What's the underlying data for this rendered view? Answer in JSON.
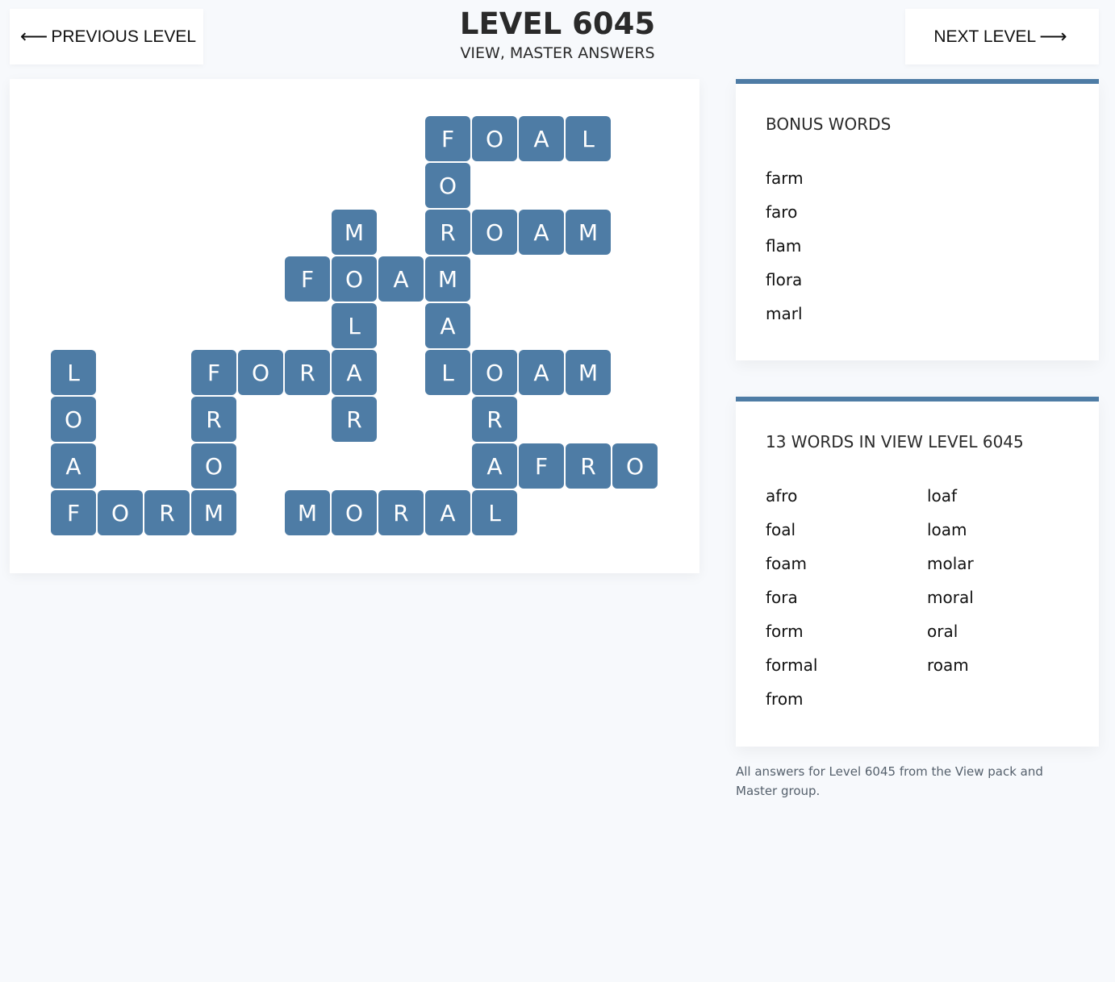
{
  "nav": {
    "prev_label": "PREVIOUS LEVEL",
    "next_label": "NEXT LEVEL",
    "prev_icon": "arrow-left-icon",
    "next_icon": "arrow-right-icon"
  },
  "header": {
    "title": "LEVEL 6045",
    "subtitle": "VIEW, MASTER ANSWERS"
  },
  "colors": {
    "tile": "#4e7ca5",
    "background": "#f7f9fc"
  },
  "board": {
    "grid": [
      "........FOAL.",
      "........O....",
      "......M.ROAM.",
      ".....FOAM....",
      "......L.A....",
      "L..FORA.LOAM.",
      "O..R..R..R...",
      "A..O.....AFRO",
      "FORM.MORAL..."
    ]
  },
  "bonus": {
    "title": "BONUS WORDS",
    "words": [
      "farm",
      "faro",
      "flam",
      "flora",
      "marl"
    ]
  },
  "answers": {
    "title": "13 WORDS IN VIEW LEVEL 6045",
    "words": [
      "afro",
      "foal",
      "foam",
      "fora",
      "form",
      "formal",
      "from",
      "loaf",
      "loam",
      "molar",
      "moral",
      "oral",
      "roam"
    ]
  },
  "footer": "All answers for Level 6045 from the View pack and Master group."
}
